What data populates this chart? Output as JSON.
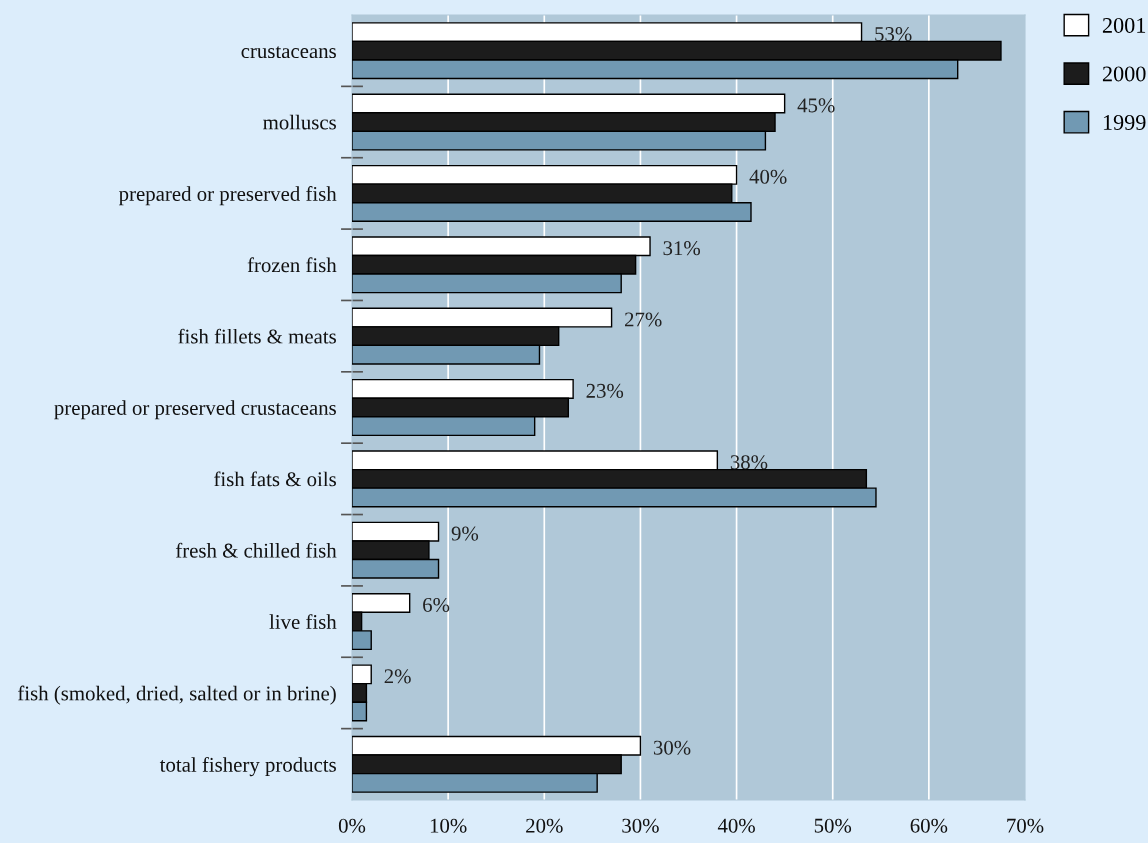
{
  "chart_data": {
    "type": "bar",
    "orientation": "horizontal",
    "categories": [
      "crustaceans",
      "molluscs",
      "prepared or preserved fish",
      "frozen fish",
      "fish fillets & meats",
      "prepared or preserved crustaceans",
      "fish fats & oils",
      "fresh & chilled fish",
      "live fish",
      "fish (smoked, dried, salted or in brine)",
      "total fishery products"
    ],
    "series": [
      {
        "name": "2001",
        "color": "#ffffff",
        "values": [
          53,
          45,
          40,
          31,
          27,
          23,
          38,
          9,
          6,
          2,
          30
        ],
        "value_labels": [
          "53%",
          "45%",
          "40%",
          "31%",
          "27%",
          "23%",
          "38%",
          "9%",
          "6%",
          "2%",
          "30%"
        ]
      },
      {
        "name": "2000",
        "color": "#1c1c1c",
        "values": [
          67.5,
          44,
          39.5,
          29.5,
          21.5,
          22.5,
          53.5,
          8,
          1,
          1.5,
          28
        ]
      },
      {
        "name": "1999",
        "color": "#7199b3",
        "values": [
          63,
          43,
          41.5,
          28,
          19.5,
          19,
          54.5,
          9,
          2,
          1.5,
          25.5
        ]
      }
    ],
    "xlim": [
      0,
      70
    ],
    "xticks": [
      {
        "value": 0,
        "label": "0%"
      },
      {
        "value": 10,
        "label": "10%"
      },
      {
        "value": 20,
        "label": "20%"
      },
      {
        "value": 30,
        "label": "30%"
      },
      {
        "value": 40,
        "label": "40%"
      },
      {
        "value": 50,
        "label": "50%"
      },
      {
        "value": 60,
        "label": "60%"
      },
      {
        "value": 70,
        "label": "70%"
      }
    ],
    "grid": "x",
    "legend": "top right"
  }
}
